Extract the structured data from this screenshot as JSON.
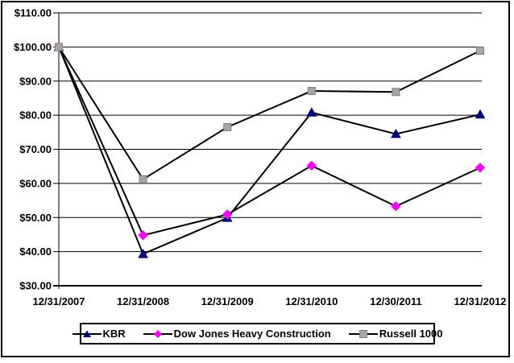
{
  "figure": {
    "background": "#ffffff",
    "border_color": "#000000",
    "grid_color": "#000000"
  },
  "chart_data": {
    "type": "line",
    "title": "",
    "xlabel": "",
    "ylabel": "",
    "categories": [
      "12/31/2007",
      "12/31/2008",
      "12/31/2009",
      "12/31/2010",
      "12/30/2011",
      "12/31/2012"
    ],
    "series": [
      {
        "name": "KBR",
        "marker": "triangle",
        "marker_color": "#000080",
        "line_color": "#000000",
        "values": [
          100.0,
          39.3,
          49.9,
          80.8,
          74.5,
          80.2
        ]
      },
      {
        "name": "Dow Jones Heavy Construction",
        "marker": "diamond",
        "marker_color": "#ff00ff",
        "line_color": "#000000",
        "values": [
          100.0,
          44.8,
          50.9,
          65.2,
          53.3,
          64.6
        ]
      },
      {
        "name": "Russell 1000",
        "marker": "square",
        "marker_color": "#a6a6a6",
        "line_color": "#000000",
        "values": [
          100.0,
          61.2,
          76.5,
          87.1,
          86.8,
          98.9
        ]
      }
    ],
    "ylim": [
      30,
      110
    ],
    "y_step": 10,
    "y_tick_labels": [
      "$30.00",
      "$40.00",
      "$50.00",
      "$60.00",
      "$70.00",
      "$80.00",
      "$90.00",
      "$100.00",
      "$110.00"
    ],
    "grid": true,
    "legend_position": "bottom-center",
    "legend_border": true
  }
}
